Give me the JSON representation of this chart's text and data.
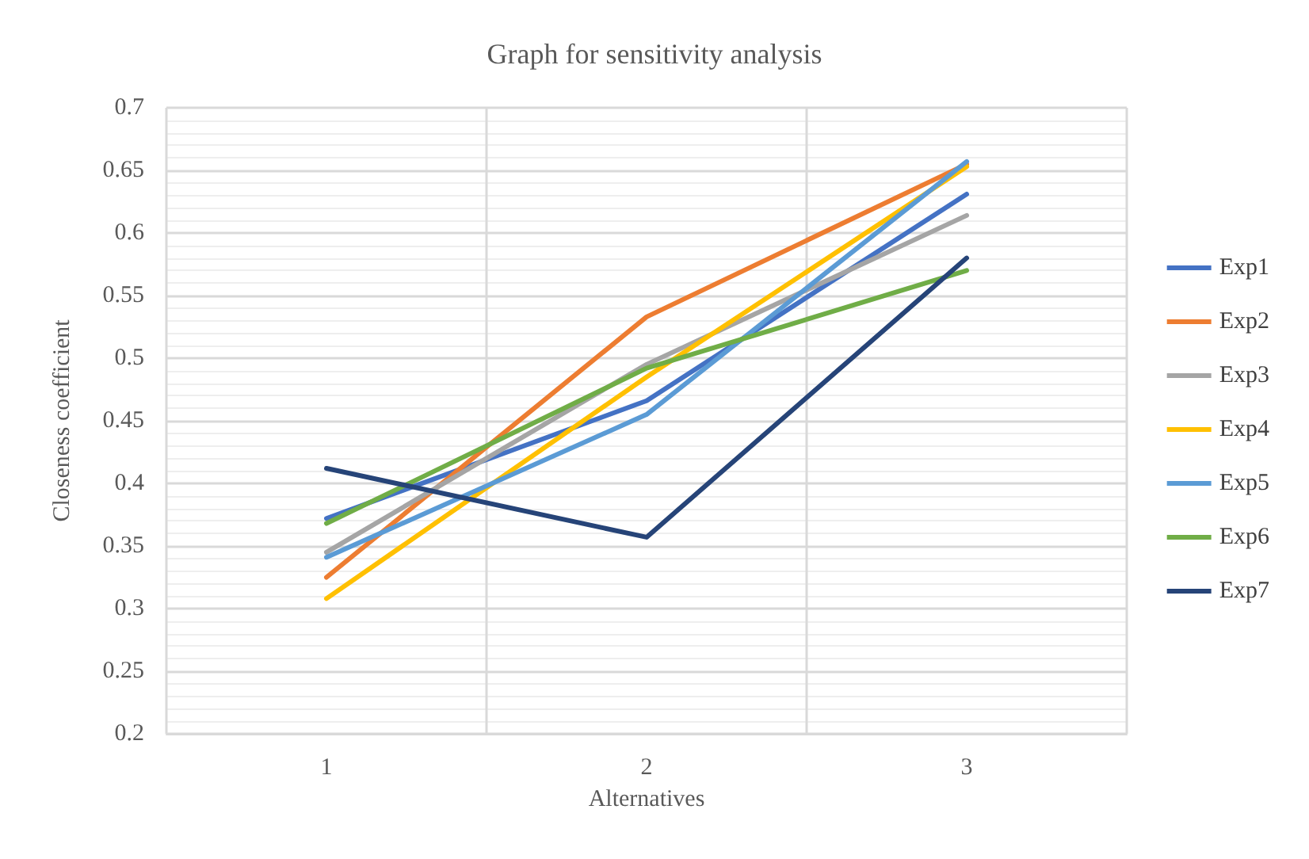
{
  "chart_data": {
    "type": "line",
    "title": "Graph for sensitivity analysis",
    "xlabel": "Alternatives",
    "ylabel": "Closeness coefficient",
    "categories": [
      "1",
      "2",
      "3"
    ],
    "series": [
      {
        "name": "Exp1",
        "color": "#4472c4",
        "values": [
          0.372,
          0.466,
          0.631
        ]
      },
      {
        "name": "Exp2",
        "color": "#ed7d31",
        "values": [
          0.325,
          0.533,
          0.655
        ]
      },
      {
        "name": "Exp3",
        "color": "#a5a5a5",
        "values": [
          0.345,
          0.495,
          0.614
        ]
      },
      {
        "name": "Exp4",
        "color": "#ffc000",
        "values": [
          0.308,
          0.485,
          0.653
        ]
      },
      {
        "name": "Exp5",
        "color": "#5b9bd5",
        "values": [
          0.341,
          0.455,
          0.657
        ]
      },
      {
        "name": "Exp6",
        "color": "#70ad47",
        "values": [
          0.368,
          0.492,
          0.57
        ]
      },
      {
        "name": "Exp7",
        "color": "#264478",
        "values": [
          0.412,
          0.357,
          0.58
        ]
      }
    ],
    "ylim": [
      0.2,
      0.7
    ],
    "yticks": [
      0.2,
      0.25,
      0.3,
      0.35,
      0.4,
      0.45,
      0.5,
      0.55,
      0.6,
      0.65,
      0.7
    ],
    "grid": true,
    "legend": "right",
    "marker": "none",
    "line_style": "solid"
  }
}
